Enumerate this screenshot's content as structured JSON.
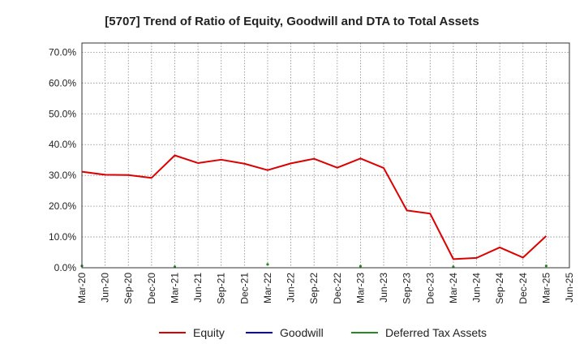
{
  "chart_data": {
    "type": "line",
    "title": "[5707]  Trend of Ratio of Equity, Goodwill and DTA to Total Assets",
    "xlabel": "",
    "ylabel": "",
    "x_ticks": [
      "Mar-20",
      "Jun-20",
      "Sep-20",
      "Dec-20",
      "Mar-21",
      "Jun-21",
      "Sep-21",
      "Dec-21",
      "Mar-22",
      "Jun-22",
      "Sep-22",
      "Dec-22",
      "Mar-23",
      "Jun-23",
      "Sep-23",
      "Dec-23",
      "Mar-24",
      "Jun-24",
      "Sep-24",
      "Dec-24",
      "Mar-25",
      "Jun-25"
    ],
    "y_ticks": [
      "0.0%",
      "10.0%",
      "20.0%",
      "30.0%",
      "40.0%",
      "50.0%",
      "60.0%",
      "70.0%"
    ],
    "y_tick_values": [
      0,
      10,
      20,
      30,
      40,
      50,
      60,
      70
    ],
    "ylim": [
      0,
      73
    ],
    "grid": true,
    "legend_position": "bottom",
    "series": [
      {
        "name": "Equity",
        "color": "#dd0000",
        "x": [
          "Mar-20",
          "Jun-20",
          "Sep-20",
          "Dec-20",
          "Mar-21",
          "Jun-21",
          "Sep-21",
          "Dec-21",
          "Mar-22",
          "Jun-22",
          "Sep-22",
          "Dec-22",
          "Mar-23",
          "Jun-23",
          "Sep-23",
          "Dec-23",
          "Mar-24",
          "Jun-24",
          "Sep-24",
          "Dec-24",
          "Mar-25"
        ],
        "values": [
          31.2,
          30.2,
          30.1,
          29.2,
          36.5,
          34.0,
          35.1,
          33.8,
          31.7,
          33.9,
          35.4,
          32.5,
          35.5,
          32.4,
          18.6,
          17.6,
          2.8,
          3.2,
          6.6,
          3.3,
          10.3
        ]
      },
      {
        "name": "Goodwill",
        "color": "#0000cc",
        "x": [],
        "values": []
      },
      {
        "name": "Deferred Tax Assets",
        "color": "#228b22",
        "x": [
          "Mar-20",
          "Mar-21",
          "Mar-22",
          "Mar-23",
          "Mar-24",
          "Mar-25"
        ],
        "values": [
          0.6,
          0.3,
          1.1,
          0.5,
          0.3,
          0.6
        ]
      }
    ]
  }
}
